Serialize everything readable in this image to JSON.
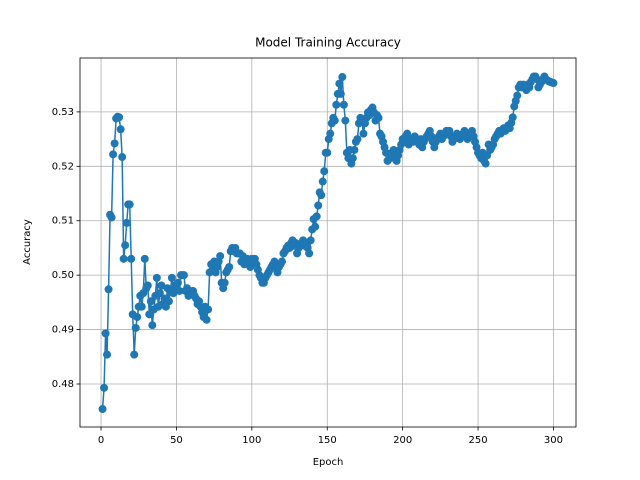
{
  "chart_data": {
    "type": "line",
    "title": "Model Training Accuracy",
    "x_label": "Epoch",
    "y_label": "Accuracy",
    "color": "#1f77b4",
    "grid": true,
    "xlim": [
      -13.95,
      314.95
    ],
    "ylim": [
      0.4721,
      0.5399
    ],
    "xticks": [
      0,
      50,
      100,
      150,
      200,
      250,
      300
    ],
    "yticks": [
      0.48,
      0.49,
      {
        "value": 0.5,
        "label": "0.50"
      },
      0.51,
      0.52,
      0.53
    ],
    "x": [
      1,
      2,
      3,
      4,
      5,
      6,
      7,
      8,
      9,
      10,
      11,
      12,
      13,
      14,
      15,
      16,
      17,
      18,
      19,
      20,
      21,
      22,
      23,
      24,
      25,
      26,
      27,
      28,
      29,
      30,
      31,
      32,
      33,
      34,
      35,
      36,
      37,
      38,
      39,
      40,
      41,
      42,
      43,
      44,
      45,
      46,
      47,
      48,
      49,
      50,
      51,
      52,
      53,
      54,
      55,
      56,
      57,
      58,
      59,
      60,
      61,
      62,
      63,
      64,
      65,
      66,
      67,
      68,
      69,
      70,
      71,
      72,
      73,
      74,
      75,
      76,
      77,
      78,
      79,
      80,
      81,
      82,
      83,
      84,
      85,
      86,
      87,
      88,
      89,
      90,
      91,
      92,
      93,
      94,
      95,
      96,
      97,
      98,
      99,
      100,
      101,
      102,
      103,
      104,
      105,
      106,
      107,
      108,
      109,
      110,
      111,
      112,
      113,
      114,
      115,
      116,
      117,
      118,
      119,
      120,
      121,
      122,
      123,
      124,
      125,
      126,
      127,
      128,
      129,
      130,
      131,
      132,
      133,
      134,
      135,
      136,
      137,
      138,
      139,
      140,
      141,
      142,
      143,
      144,
      145,
      146,
      147,
      148,
      149,
      150,
      151,
      152,
      153,
      154,
      155,
      156,
      157,
      158,
      159,
      160,
      161,
      162,
      163,
      164,
      165,
      166,
      167,
      168,
      169,
      170,
      171,
      172,
      173,
      174,
      175,
      176,
      177,
      178,
      179,
      180,
      181,
      182,
      183,
      184,
      185,
      186,
      187,
      188,
      189,
      190,
      191,
      192,
      193,
      194,
      195,
      196,
      197,
      198,
      199,
      200,
      201,
      202,
      203,
      204,
      205,
      206,
      207,
      208,
      209,
      210,
      211,
      212,
      213,
      214,
      215,
      216,
      217,
      218,
      219,
      220,
      221,
      222,
      223,
      224,
      225,
      226,
      227,
      228,
      229,
      230,
      231,
      232,
      233,
      234,
      235,
      236,
      237,
      238,
      239,
      240,
      241,
      242,
      243,
      244,
      245,
      246,
      247,
      248,
      249,
      250,
      251,
      252,
      253,
      254,
      255,
      256,
      257,
      258,
      259,
      260,
      261,
      262,
      263,
      264,
      265,
      266,
      267,
      268,
      269,
      270,
      271,
      272,
      273,
      274,
      275,
      276,
      277,
      278,
      279,
      280,
      281,
      282,
      283,
      284,
      285,
      286,
      287,
      288,
      289,
      290,
      291,
      292,
      293,
      294,
      295,
      296,
      297,
      298,
      299,
      300
    ],
    "values": [
      0.4754,
      0.4793,
      0.4893,
      0.4854,
      0.4974,
      0.5111,
      0.5106,
      0.5222,
      0.5242,
      0.5288,
      0.5291,
      0.529,
      0.5268,
      0.5217,
      0.503,
      0.5055,
      0.5096,
      0.513,
      0.513,
      0.503,
      0.4928,
      0.4854,
      0.4903,
      0.4923,
      0.4942,
      0.4962,
      0.4942,
      0.4967,
      0.503,
      0.4976,
      0.4981,
      0.4928,
      0.4952,
      0.4908,
      0.4937,
      0.4962,
      0.4995,
      0.4942,
      0.4967,
      0.4981,
      0.4947,
      0.4957,
      0.4942,
      0.4976,
      0.4952,
      0.4971,
      0.4995,
      0.4967,
      0.4981,
      0.4976,
      0.4986,
      0.4971,
      0.5,
      0.5,
      0.5,
      0.4971,
      0.4976,
      0.4962,
      0.4971,
      0.4966,
      0.4971,
      0.4962,
      0.4957,
      0.4947,
      0.4952,
      0.4942,
      0.4932,
      0.4923,
      0.4942,
      0.4918,
      0.4937,
      0.5005,
      0.502,
      0.501,
      0.5025,
      0.5005,
      0.5015,
      0.5025,
      0.5035,
      0.4986,
      0.4976,
      0.4986,
      0.5005,
      0.501,
      0.5015,
      0.5044,
      0.505,
      0.5044,
      0.505,
      0.504,
      0.504,
      0.504,
      0.5025,
      0.5035,
      0.502,
      0.503,
      0.503,
      0.5025,
      0.5015,
      0.503,
      0.5025,
      0.503,
      0.502,
      0.501,
      0.5,
      0.4995,
      0.4986,
      0.4986,
      0.4995,
      0.5,
      0.5005,
      0.501,
      0.5015,
      0.502,
      0.5025,
      0.5015,
      0.5005,
      0.5015,
      0.502,
      0.5025,
      0.504,
      0.5044,
      0.505,
      0.5054,
      0.505,
      0.5059,
      0.5064,
      0.5054,
      0.5059,
      0.504,
      0.505,
      0.5054,
      0.5059,
      0.5064,
      0.5054,
      0.5059,
      0.505,
      0.504,
      0.5064,
      0.5084,
      0.5103,
      0.5089,
      0.5108,
      0.5128,
      0.5152,
      0.5147,
      0.5172,
      0.5191,
      0.5225,
      0.5225,
      0.525,
      0.526,
      0.5279,
      0.5289,
      0.5284,
      0.5313,
      0.5333,
      0.5352,
      0.5333,
      0.5364,
      0.5313,
      0.5284,
      0.5225,
      0.5215,
      0.523,
      0.5205,
      0.5215,
      0.523,
      0.5245,
      0.525,
      0.5279,
      0.5289,
      0.5284,
      0.526,
      0.5279,
      0.5289,
      0.5299,
      0.5294,
      0.5304,
      0.5308,
      0.5299,
      0.5284,
      0.5294,
      0.5289,
      0.526,
      0.5255,
      0.5245,
      0.5235,
      0.5225,
      0.521,
      0.522,
      0.5215,
      0.5225,
      0.523,
      0.522,
      0.521,
      0.522,
      0.523,
      0.524,
      0.525,
      0.5245,
      0.5255,
      0.526,
      0.524,
      0.5245,
      0.525,
      0.5245,
      0.5255,
      0.525,
      0.5245,
      0.524,
      0.525,
      0.5235,
      0.5245,
      0.525,
      0.5255,
      0.526,
      0.5265,
      0.5255,
      0.5245,
      0.5235,
      0.5245,
      0.525,
      0.5255,
      0.526,
      0.525,
      0.5255,
      0.526,
      0.5265,
      0.526,
      0.5265,
      0.5255,
      0.5245,
      0.525,
      0.5255,
      0.526,
      0.5255,
      0.525,
      0.5255,
      0.526,
      0.5265,
      0.5255,
      0.525,
      0.5255,
      0.526,
      0.5265,
      0.5255,
      0.5245,
      0.5235,
      0.5225,
      0.522,
      0.5215,
      0.5225,
      0.521,
      0.5205,
      0.522,
      0.524,
      0.523,
      0.5235,
      0.524,
      0.525,
      0.5255,
      0.526,
      0.5265,
      0.526,
      0.5265,
      0.527,
      0.5265,
      0.527,
      0.5275,
      0.527,
      0.528,
      0.529,
      0.531,
      0.532,
      0.533,
      0.5345,
      0.535,
      0.5345,
      0.535,
      0.5345,
      0.534,
      0.535,
      0.5345,
      0.5355,
      0.536,
      0.5365,
      0.5365,
      0.536,
      0.5345,
      0.535,
      0.5355,
      0.536,
      0.5365,
      0.536,
      0.5358,
      0.5356,
      0.5355,
      0.5354,
      0.5353
    ]
  }
}
